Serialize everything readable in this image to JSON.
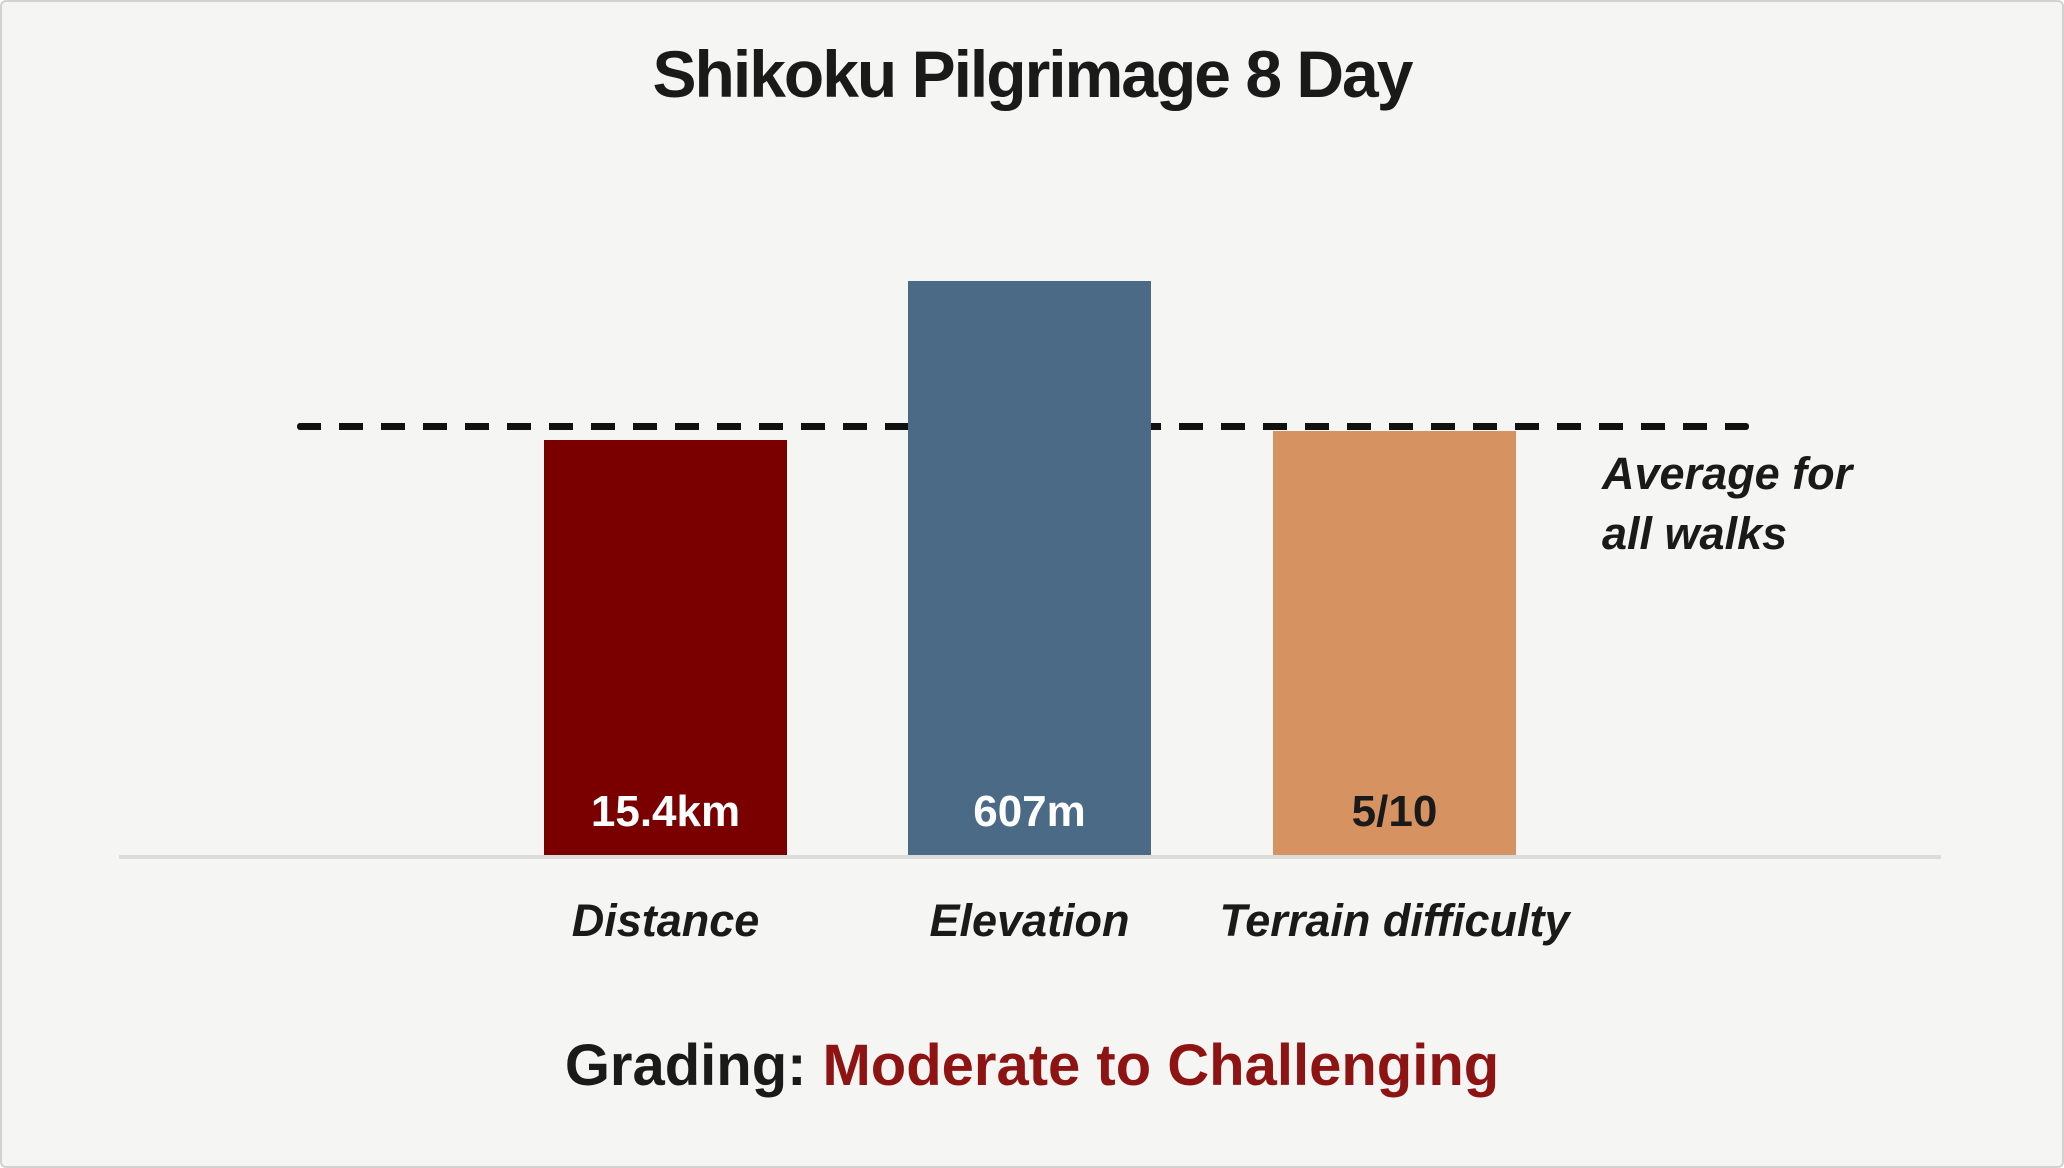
{
  "header": {
    "title": "Shikoku Pilgrimage 8 Day"
  },
  "chart_data": {
    "type": "bar",
    "title": "Shikoku Pilgrimage 8 Day",
    "categories": [
      "Distance",
      "Elevation",
      "Terrain difficulty"
    ],
    "value_labels": [
      "15.4km",
      "607m",
      "5/10"
    ],
    "values": [
      0.97,
      1.34,
      0.99
    ],
    "value_scale_note": "bar heights relative to the dashed average line (average = 1.0)",
    "bar_colors": [
      "#7A0000",
      "#4A6A85",
      "#D69260"
    ],
    "value_label_colors": [
      "#FFFFFF",
      "#FFFFFF",
      "#1A1A1A"
    ],
    "average_line": {
      "value": 1.0,
      "style": "dashed",
      "color": "#111111",
      "label_line1": "Average for",
      "label_line2": "all walks"
    },
    "grid": false,
    "legend_position": "right-of-average-line",
    "baseline_color": "#DCDCDC"
  },
  "footer": {
    "grading_prefix": "Grading:",
    "grading_value": "Moderate to Challenging",
    "grading_value_color": "#8E1414"
  },
  "colors": {
    "background": "#F5F5F4",
    "border": "#D2D2D2",
    "text": "#1A1A1A"
  }
}
